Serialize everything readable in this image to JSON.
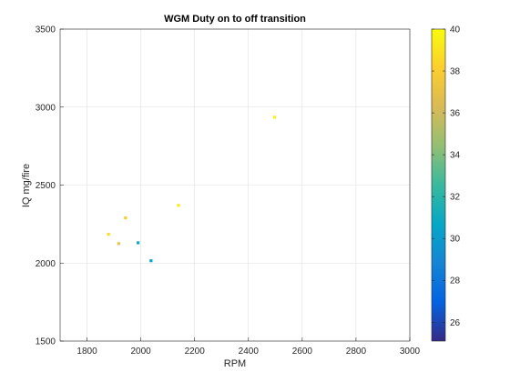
{
  "chart_data": {
    "type": "scatter",
    "title": "WGM Duty on to off transition",
    "xlabel": "RPM",
    "ylabel": "IQ mg/fire",
    "xlim": [
      1700,
      3000
    ],
    "ylim": [
      1500,
      3500
    ],
    "xticks": [
      1800,
      2000,
      2200,
      2400,
      2600,
      2800,
      3000
    ],
    "yticks": [
      1500,
      2000,
      2500,
      3000,
      3500
    ],
    "grid": true,
    "colorbar": {
      "position": "right",
      "clim": [
        25.1,
        40
      ],
      "ticks": [
        26,
        28,
        30,
        32,
        34,
        36,
        38,
        40
      ],
      "colormap": "parula"
    },
    "points": [
      {
        "x": 1880,
        "y": 2185,
        "c": 38.7
      },
      {
        "x": 1918,
        "y": 2125,
        "c": 37.2
      },
      {
        "x": 1943,
        "y": 2290,
        "c": 38.0
      },
      {
        "x": 1990,
        "y": 2130,
        "c": 30.8
      },
      {
        "x": 2038,
        "y": 2015,
        "c": 30.5
      },
      {
        "x": 2140,
        "y": 2370,
        "c": 39.3
      },
      {
        "x": 2497,
        "y": 2935,
        "c": 39.6
      }
    ]
  }
}
